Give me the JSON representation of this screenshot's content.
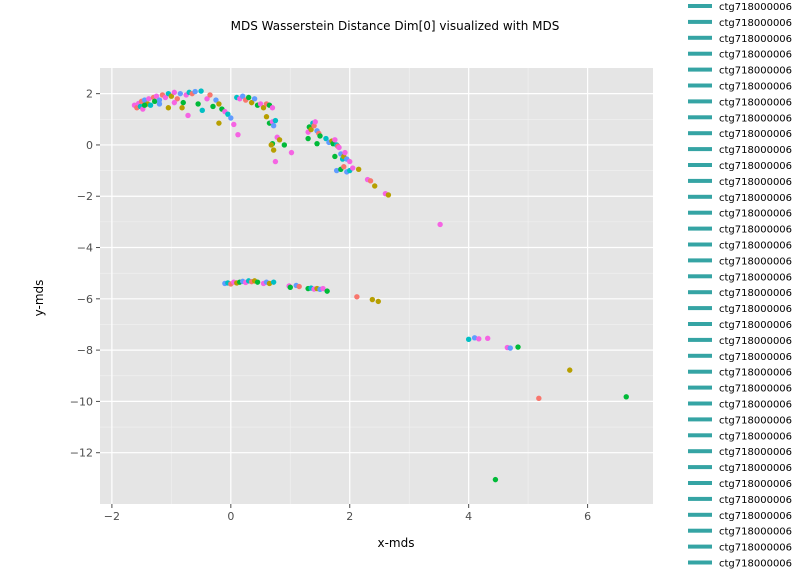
{
  "chart_data": {
    "type": "scatter",
    "title": "MDS Wasserstein Distance Dim[0] visualized with MDS",
    "xlabel": "x-mds",
    "ylabel": "y-mds",
    "xlim": [
      -2.2,
      7.1
    ],
    "ylim": [
      -14.0,
      3.0
    ],
    "x_ticks": [
      -2,
      0,
      2,
      4,
      6
    ],
    "y_ticks": [
      2,
      0,
      -2,
      -4,
      -6,
      -8,
      -10,
      -12
    ],
    "x_tick_labels": [
      "−2",
      "0",
      "2",
      "4",
      "6"
    ],
    "y_tick_labels": [
      "2",
      "0",
      "−2",
      "−4",
      "−6",
      "−8",
      "−10",
      "−12"
    ],
    "grid": true,
    "legend_placement": "right",
    "legend_entries": [
      "ctg718000006",
      "ctg718000006",
      "ctg718000006",
      "ctg718000006",
      "ctg718000006",
      "ctg718000006",
      "ctg718000006",
      "ctg718000006",
      "ctg718000006",
      "ctg718000006",
      "ctg718000006",
      "ctg718000006",
      "ctg718000006",
      "ctg718000006",
      "ctg718000006",
      "ctg718000006",
      "ctg718000006",
      "ctg718000006",
      "ctg718000006",
      "ctg718000006",
      "ctg718000006",
      "ctg718000006",
      "ctg718000006",
      "ctg718000006",
      "ctg718000006",
      "ctg718000006",
      "ctg718000006",
      "ctg718000006",
      "ctg718000006",
      "ctg718000006",
      "ctg718000006",
      "ctg718000006",
      "ctg718000006",
      "ctg718000006",
      "ctg718000006",
      "ctg718000006"
    ],
    "legend_color": "#35a4a4",
    "colors": [
      "#f8766d",
      "#b79f00",
      "#00ba38",
      "#00bfc4",
      "#619cff",
      "#f564e3"
    ],
    "background_color": "#e5e5e5",
    "points": [
      {
        "x": -1.62,
        "y": 1.55,
        "c": 5
      },
      {
        "x": -1.58,
        "y": 1.45,
        "c": 0
      },
      {
        "x": -1.55,
        "y": 1.62,
        "c": 5
      },
      {
        "x": -1.52,
        "y": 1.5,
        "c": 3
      },
      {
        "x": -1.5,
        "y": 1.7,
        "c": 0
      },
      {
        "x": -1.48,
        "y": 1.4,
        "c": 5
      },
      {
        "x": -1.45,
        "y": 1.75,
        "c": 4
      },
      {
        "x": -1.4,
        "y": 1.6,
        "c": 1
      },
      {
        "x": -1.38,
        "y": 1.8,
        "c": 5
      },
      {
        "x": -1.35,
        "y": 1.55,
        "c": 3
      },
      {
        "x": -1.3,
        "y": 1.85,
        "c": 0
      },
      {
        "x": -1.28,
        "y": 1.7,
        "c": 2
      },
      {
        "x": -1.25,
        "y": 1.9,
        "c": 5
      },
      {
        "x": -1.2,
        "y": 1.75,
        "c": 4
      },
      {
        "x": -1.15,
        "y": 1.95,
        "c": 0
      },
      {
        "x": -1.1,
        "y": 1.85,
        "c": 5
      },
      {
        "x": -1.05,
        "y": 2.0,
        "c": 3
      },
      {
        "x": -1.0,
        "y": 1.9,
        "c": 1
      },
      {
        "x": -0.95,
        "y": 2.05,
        "c": 5
      },
      {
        "x": -0.9,
        "y": 1.8,
        "c": 0
      },
      {
        "x": -0.85,
        "y": 2.0,
        "c": 4
      },
      {
        "x": -0.8,
        "y": 1.65,
        "c": 2
      },
      {
        "x": -0.75,
        "y": 1.95,
        "c": 5
      },
      {
        "x": -0.7,
        "y": 2.05,
        "c": 3
      },
      {
        "x": -0.65,
        "y": 2.0,
        "c": 0
      },
      {
        "x": -0.6,
        "y": 2.08,
        "c": 4
      },
      {
        "x": -0.55,
        "y": 1.6,
        "c": 2
      },
      {
        "x": -1.45,
        "y": 1.55,
        "c": 2
      },
      {
        "x": -1.2,
        "y": 1.6,
        "c": 4
      },
      {
        "x": -1.05,
        "y": 1.45,
        "c": 1
      },
      {
        "x": -0.95,
        "y": 1.65,
        "c": 5
      },
      {
        "x": -0.82,
        "y": 1.45,
        "c": 1
      },
      {
        "x": -0.72,
        "y": 1.15,
        "c": 5
      },
      {
        "x": -0.5,
        "y": 2.1,
        "c": 3
      },
      {
        "x": -0.48,
        "y": 1.35,
        "c": 3
      },
      {
        "x": -0.4,
        "y": 1.8,
        "c": 5
      },
      {
        "x": -0.35,
        "y": 1.95,
        "c": 0
      },
      {
        "x": -0.3,
        "y": 1.5,
        "c": 2
      },
      {
        "x": -0.25,
        "y": 1.75,
        "c": 4
      },
      {
        "x": -0.2,
        "y": 1.6,
        "c": 1
      },
      {
        "x": -0.15,
        "y": 1.4,
        "c": 2
      },
      {
        "x": -0.1,
        "y": 1.3,
        "c": 5
      },
      {
        "x": -0.05,
        "y": 1.2,
        "c": 3
      },
      {
        "x": -0.2,
        "y": 0.85,
        "c": 1
      },
      {
        "x": 0.0,
        "y": 1.05,
        "c": 4
      },
      {
        "x": 0.05,
        "y": 0.8,
        "c": 5
      },
      {
        "x": 0.12,
        "y": 0.4,
        "c": 5
      },
      {
        "x": 0.1,
        "y": 1.85,
        "c": 3
      },
      {
        "x": 0.15,
        "y": 1.8,
        "c": 5
      },
      {
        "x": 0.2,
        "y": 1.9,
        "c": 4
      },
      {
        "x": 0.25,
        "y": 1.75,
        "c": 0
      },
      {
        "x": 0.3,
        "y": 1.85,
        "c": 2
      },
      {
        "x": 0.35,
        "y": 1.65,
        "c": 1
      },
      {
        "x": 0.4,
        "y": 1.8,
        "c": 4
      },
      {
        "x": 0.45,
        "y": 1.55,
        "c": 2
      },
      {
        "x": 0.5,
        "y": 1.6,
        "c": 5
      },
      {
        "x": 0.55,
        "y": 1.45,
        "c": 1
      },
      {
        "x": 0.6,
        "y": 1.6,
        "c": 0
      },
      {
        "x": 0.65,
        "y": 1.55,
        "c": 2
      },
      {
        "x": 0.7,
        "y": 1.45,
        "c": 5
      },
      {
        "x": 0.6,
        "y": 1.1,
        "c": 1
      },
      {
        "x": 0.65,
        "y": 0.85,
        "c": 2
      },
      {
        "x": 0.7,
        "y": 0.9,
        "c": 5
      },
      {
        "x": 0.72,
        "y": 0.75,
        "c": 4
      },
      {
        "x": 0.75,
        "y": 0.95,
        "c": 3
      },
      {
        "x": 0.78,
        "y": 0.3,
        "c": 5
      },
      {
        "x": 0.82,
        "y": 0.2,
        "c": 1
      },
      {
        "x": 0.7,
        "y": 0.05,
        "c": 2
      },
      {
        "x": 0.68,
        "y": 0.0,
        "c": 1
      },
      {
        "x": 0.72,
        "y": -0.2,
        "c": 1
      },
      {
        "x": 0.9,
        "y": 0.0,
        "c": 2
      },
      {
        "x": 1.02,
        "y": -0.3,
        "c": 5
      },
      {
        "x": 0.75,
        "y": -0.65,
        "c": 5
      },
      {
        "x": 1.3,
        "y": 0.5,
        "c": 5
      },
      {
        "x": 1.32,
        "y": 0.7,
        "c": 2
      },
      {
        "x": 1.35,
        "y": 0.6,
        "c": 1
      },
      {
        "x": 1.38,
        "y": 0.85,
        "c": 3
      },
      {
        "x": 1.4,
        "y": 0.75,
        "c": 0
      },
      {
        "x": 1.42,
        "y": 0.9,
        "c": 5
      },
      {
        "x": 1.45,
        "y": 0.55,
        "c": 4
      },
      {
        "x": 1.3,
        "y": 0.25,
        "c": 2
      },
      {
        "x": 1.48,
        "y": 0.45,
        "c": 0
      },
      {
        "x": 1.5,
        "y": 0.35,
        "c": 2
      },
      {
        "x": 1.45,
        "y": 0.05,
        "c": 2
      },
      {
        "x": 1.6,
        "y": 0.25,
        "c": 3
      },
      {
        "x": 1.65,
        "y": 0.1,
        "c": 4
      },
      {
        "x": 1.7,
        "y": 0.15,
        "c": 1
      },
      {
        "x": 1.72,
        "y": 0.05,
        "c": 2
      },
      {
        "x": 1.75,
        "y": 0.2,
        "c": 5
      },
      {
        "x": 1.78,
        "y": 0.0,
        "c": 3
      },
      {
        "x": 1.8,
        "y": -0.05,
        "c": 0
      },
      {
        "x": 1.82,
        "y": -0.1,
        "c": 5
      },
      {
        "x": 1.75,
        "y": -0.45,
        "c": 2
      },
      {
        "x": 1.85,
        "y": -0.35,
        "c": 4
      },
      {
        "x": 1.88,
        "y": -0.55,
        "c": 3
      },
      {
        "x": 1.9,
        "y": -0.45,
        "c": 1
      },
      {
        "x": 1.92,
        "y": -0.3,
        "c": 5
      },
      {
        "x": 1.95,
        "y": -0.55,
        "c": 4
      },
      {
        "x": 2.0,
        "y": -0.65,
        "c": 5
      },
      {
        "x": 1.78,
        "y": -1.0,
        "c": 4
      },
      {
        "x": 1.85,
        "y": -0.95,
        "c": 2
      },
      {
        "x": 1.9,
        "y": -0.85,
        "c": 0
      },
      {
        "x": 1.95,
        "y": -1.05,
        "c": 4
      },
      {
        "x": 2.0,
        "y": -1.0,
        "c": 3
      },
      {
        "x": 2.05,
        "y": -0.9,
        "c": 5
      },
      {
        "x": 2.15,
        "y": -0.95,
        "c": 1
      },
      {
        "x": 2.3,
        "y": -1.35,
        "c": 5
      },
      {
        "x": 2.35,
        "y": -1.4,
        "c": 0
      },
      {
        "x": 2.42,
        "y": -1.6,
        "c": 1
      },
      {
        "x": 2.6,
        "y": -1.9,
        "c": 5
      },
      {
        "x": 2.65,
        "y": -1.95,
        "c": 1
      },
      {
        "x": 3.52,
        "y": -3.1,
        "c": 5
      },
      {
        "x": -0.1,
        "y": -5.4,
        "c": 4
      },
      {
        "x": -0.05,
        "y": -5.38,
        "c": 3
      },
      {
        "x": 0.0,
        "y": -5.42,
        "c": 0
      },
      {
        "x": 0.05,
        "y": -5.35,
        "c": 5
      },
      {
        "x": 0.1,
        "y": -5.38,
        "c": 1
      },
      {
        "x": 0.15,
        "y": -5.35,
        "c": 2
      },
      {
        "x": 0.2,
        "y": -5.32,
        "c": 4
      },
      {
        "x": 0.25,
        "y": -5.36,
        "c": 5
      },
      {
        "x": 0.3,
        "y": -5.3,
        "c": 3
      },
      {
        "x": 0.35,
        "y": -5.33,
        "c": 0
      },
      {
        "x": 0.4,
        "y": -5.3,
        "c": 1
      },
      {
        "x": 0.45,
        "y": -5.35,
        "c": 2
      },
      {
        "x": 0.55,
        "y": -5.4,
        "c": 5
      },
      {
        "x": 0.6,
        "y": -5.35,
        "c": 4
      },
      {
        "x": 0.65,
        "y": -5.4,
        "c": 1
      },
      {
        "x": 0.72,
        "y": -5.35,
        "c": 3
      },
      {
        "x": 0.98,
        "y": -5.5,
        "c": 5
      },
      {
        "x": 1.0,
        "y": -5.55,
        "c": 2
      },
      {
        "x": 1.1,
        "y": -5.48,
        "c": 4
      },
      {
        "x": 1.15,
        "y": -5.52,
        "c": 0
      },
      {
        "x": 1.3,
        "y": -5.6,
        "c": 2
      },
      {
        "x": 1.35,
        "y": -5.58,
        "c": 3
      },
      {
        "x": 1.4,
        "y": -5.62,
        "c": 5
      },
      {
        "x": 1.45,
        "y": -5.6,
        "c": 1
      },
      {
        "x": 1.5,
        "y": -5.63,
        "c": 4
      },
      {
        "x": 1.55,
        "y": -5.6,
        "c": 5
      },
      {
        "x": 1.62,
        "y": -5.7,
        "c": 2
      },
      {
        "x": 2.12,
        "y": -5.92,
        "c": 0
      },
      {
        "x": 2.38,
        "y": -6.03,
        "c": 1
      },
      {
        "x": 2.48,
        "y": -6.1,
        "c": 1
      },
      {
        "x": 4.0,
        "y": -7.58,
        "c": 3
      },
      {
        "x": 4.1,
        "y": -7.52,
        "c": 4
      },
      {
        "x": 4.17,
        "y": -7.56,
        "c": 5
      },
      {
        "x": 4.32,
        "y": -7.54,
        "c": 5
      },
      {
        "x": 4.65,
        "y": -7.9,
        "c": 5
      },
      {
        "x": 4.7,
        "y": -7.92,
        "c": 4
      },
      {
        "x": 4.83,
        "y": -7.88,
        "c": 2
      },
      {
        "x": 5.7,
        "y": -8.78,
        "c": 1
      },
      {
        "x": 5.18,
        "y": -9.88,
        "c": 0
      },
      {
        "x": 6.65,
        "y": -9.82,
        "c": 2
      },
      {
        "x": 4.45,
        "y": -13.05,
        "c": 2
      }
    ]
  }
}
